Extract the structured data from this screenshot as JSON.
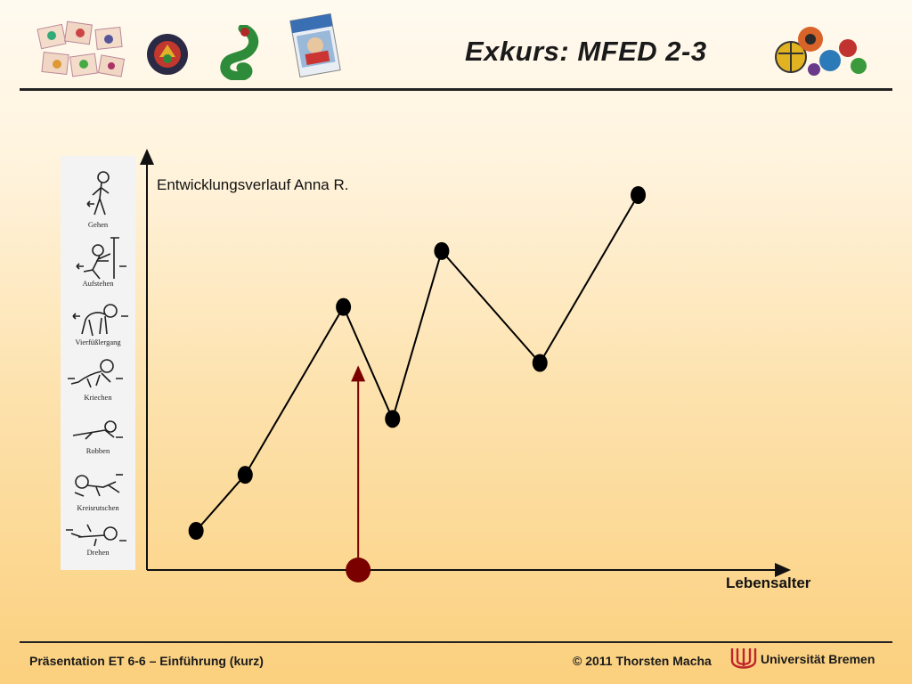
{
  "header": {
    "title": "Exkurs: MFED 2-3",
    "images": [
      "picture-cards",
      "round-toy",
      "green-toy",
      "manual-cover",
      "toy-balls"
    ]
  },
  "stages": [
    "Gehen",
    "Aufstehen",
    "Vierfüßlergang",
    "Kriechen",
    "Robben",
    "Kreisrutschen",
    "Drehen"
  ],
  "chart_data": {
    "type": "line",
    "title": "Entwicklungsverlauf Anna R.",
    "xlabel": "Lebensalter",
    "ylabel": "",
    "grid": false,
    "series": [
      {
        "values": [
          0.5,
          1.5,
          4.5,
          2.5,
          5.5,
          3.5,
          6.5
        ]
      }
    ],
    "x": [
      1,
      2,
      4,
      5,
      6,
      8,
      10
    ],
    "xlim": [
      0,
      13
    ],
    "ylim": [
      -0.2,
      7.2
    ],
    "marker": {
      "x": 4.3,
      "note": "red arrow marking age on the x axis"
    },
    "colors": {
      "line": "#000000",
      "marker": "#7a0000"
    }
  },
  "footer": {
    "left": "Präsentation ET 6-6 – Einführung (kurz)",
    "copyright": "© 2011 Thorsten Macha",
    "university": "Universität Bremen"
  }
}
